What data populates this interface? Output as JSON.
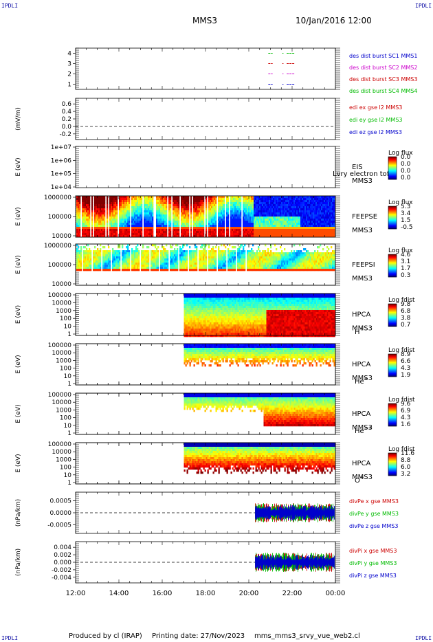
{
  "header": {
    "corner_tl": "IPDLI",
    "corner_tr": "IPDLI",
    "corner_bl": "IPDLI",
    "corner_br": "IPDLI",
    "title": "MMS3",
    "date": "10/Jan/2016 12:00"
  },
  "footer": {
    "produced": "Produced by cl (IRAP)",
    "printing": "Printing date: 27/Nov/2023",
    "file": "mms_mms3_srvy_vue_web2.cl"
  },
  "colors": {
    "blue": "#0000cc",
    "magenta": "#cc00cc",
    "red": "#cc0000",
    "green": "#00bb00",
    "dashed": "#000000"
  },
  "chart_data": [
    {
      "type": "line",
      "panel": "burst",
      "yticks": [
        "1",
        "2",
        "3",
        "4"
      ],
      "ylim": [
        0.5,
        4.5
      ],
      "legend": [
        "des dist burst SC1 MMS1",
        "des dist burst SC2 MMS2",
        "des dist burst SC3 MMS3",
        "des dist burst SC4 MMS4"
      ],
      "legend_colors": [
        "#0000cc",
        "#cc00cc",
        "#cc0000",
        "#00bb00"
      ],
      "series": [
        {
          "values": [
            {
              "x": [
                20.9,
                21.1
              ],
              "y": 4
            },
            {
              "x": [
                21.55,
                21.6
              ],
              "y": 4
            },
            {
              "x": [
                21.75,
                22.1
              ],
              "y": 4
            },
            {
              "x": [
                20.9,
                21.1
              ],
              "y": 3
            },
            {
              "x": [
                21.55,
                21.6
              ],
              "y": 3
            },
            {
              "x": [
                21.75,
                22.1
              ],
              "y": 3
            },
            {
              "x": [
                20.9,
                21.1
              ],
              "y": 2
            },
            {
              "x": [
                21.55,
                21.6
              ],
              "y": 2
            },
            {
              "x": [
                21.75,
                22.1
              ],
              "y": 2
            },
            {
              "x": [
                20.9,
                21.1
              ],
              "y": 1
            },
            {
              "x": [
                21.55,
                21.6
              ],
              "y": 1
            },
            {
              "x": [
                21.75,
                22.1
              ],
              "y": 1
            }
          ]
        }
      ]
    },
    {
      "type": "line",
      "panel": "edi",
      "ylabel": "(mV/m)",
      "yticks": [
        "0.6",
        "0.4",
        "0.2",
        "0.0",
        "-0.2"
      ],
      "ylim": [
        -0.35,
        0.75
      ],
      "legend": [
        "edi ex gse l2 MMS3",
        "edi ey gse l2 MMS3",
        "edi ez gse l2 MMS3"
      ],
      "legend_colors": [
        "#cc0000",
        "#00bb00",
        "#0000cc"
      ]
    },
    {
      "type": "heatmap",
      "panel": "eis",
      "ylabel": "E (eV)",
      "yticks": [
        "1e+07",
        "1e+06",
        "1e+05",
        "1e+04"
      ],
      "instrument": [
        "EIS",
        "MMS3"
      ],
      "overlay": "Lvry electron tof",
      "cbar_title": "Log flux",
      "cbar_ticks": [
        "0.0",
        "0.0",
        "0.0",
        "0.0"
      ]
    },
    {
      "type": "heatmap",
      "panel": "feepse",
      "ylabel": "E (eV)",
      "yticks": [
        "1000000",
        "100000",
        "10000"
      ],
      "instrument": [
        "FEEPSE",
        "MMS3"
      ],
      "cbar_title": "Log flux",
      "cbar_ticks": [
        "5.3",
        "3.4",
        "1.5",
        "-0.5"
      ]
    },
    {
      "type": "heatmap",
      "panel": "feepsi",
      "ylabel": "E (eV)",
      "yticks": [
        "1000000",
        "100000",
        "10000"
      ],
      "instrument": [
        "FEEPSI",
        "MMS3"
      ],
      "cbar_title": "Log flux",
      "cbar_ticks": [
        "4.6",
        "3.1",
        "1.7",
        "0.3"
      ]
    },
    {
      "type": "heatmap",
      "panel": "hpca_h",
      "ylabel": "E (eV)",
      "yticks": [
        "100000",
        "10000",
        "1000",
        "100",
        "10",
        "1"
      ],
      "instrument": [
        "HPCA",
        "MMS3"
      ],
      "species": "H",
      "charge": "+",
      "cbar_title": "Log fdist",
      "cbar_ticks": [
        "9.8",
        "6.8",
        "3.8",
        "0.7"
      ]
    },
    {
      "type": "heatmap",
      "panel": "hpca_he",
      "ylabel": "E (eV)",
      "yticks": [
        "100000",
        "10000",
        "1000",
        "100",
        "10",
        "1"
      ],
      "instrument": [
        "HPCA",
        "MMS3"
      ],
      "species": "He",
      "charge": "+",
      "cbar_title": "Log fdist",
      "cbar_ticks": [
        "8.9",
        "6.6",
        "4.3",
        "1.9"
      ]
    },
    {
      "type": "heatmap",
      "panel": "hpca_hepp",
      "ylabel": "E (eV)",
      "yticks": [
        "100000",
        "10000",
        "1000",
        "100",
        "10",
        "1"
      ],
      "instrument": [
        "HPCA",
        "MMS3"
      ],
      "species": "He",
      "charge": "++",
      "cbar_title": "Log fdist",
      "cbar_ticks": [
        "9.6",
        "6.9",
        "4.3",
        "1.6"
      ]
    },
    {
      "type": "heatmap",
      "panel": "hpca_o",
      "ylabel": "E (eV)",
      "yticks": [
        "100000",
        "10000",
        "1000",
        "100",
        "10",
        "1"
      ],
      "instrument": [
        "HPCA",
        "MMS3"
      ],
      "species": "O",
      "charge": "+",
      "cbar_title": "Log fdist",
      "cbar_ticks": [
        "11.6",
        "8.8",
        "6.0",
        "3.2"
      ]
    },
    {
      "type": "line",
      "panel": "divpe",
      "ylabel": "(nPa/km)",
      "yticks": [
        "0.0005",
        "0.0000",
        "-0.0005"
      ],
      "ylim": [
        -0.00085,
        0.00085
      ],
      "legend": [
        "divPe x gse MMS3",
        "divPe y gse MMS3",
        "divPe z gse MMS3"
      ],
      "legend_colors": [
        "#cc0000",
        "#00bb00",
        "#0000cc"
      ]
    },
    {
      "type": "line",
      "panel": "divpi",
      "ylabel": "(nPa/km)",
      "yticks": [
        "0.004",
        "0.002",
        "0.000",
        "-0.002",
        "-0.004"
      ],
      "ylim": [
        -0.0055,
        0.0055
      ],
      "legend": [
        "divPi x gse MMS3",
        "divPi y gse MMS3",
        "divPi z gse MMS3"
      ],
      "legend_colors": [
        "#cc0000",
        "#00bb00",
        "#0000cc"
      ]
    }
  ],
  "time_axis": {
    "labels": [
      "12:00",
      "14:00",
      "16:00",
      "18:00",
      "20:00",
      "22:00",
      "00:00"
    ],
    "xlim": [
      12,
      24
    ]
  }
}
